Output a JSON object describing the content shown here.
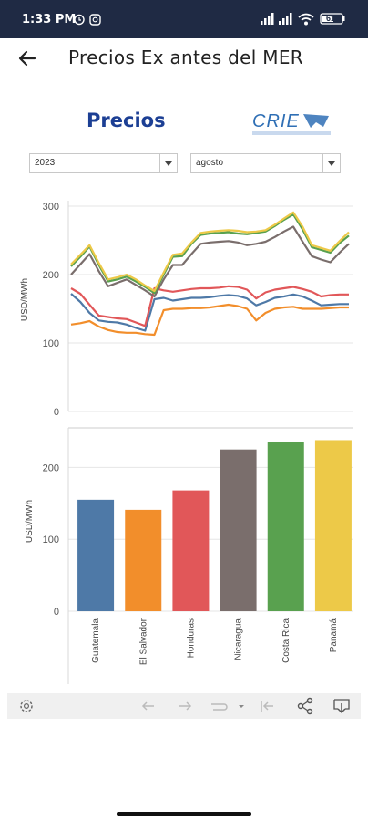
{
  "status_bar": {
    "time": "1:33 PM",
    "battery": "61"
  },
  "app_bar": {
    "title": "Precios Ex antes del MER",
    "back_icon": "arrow-left-icon"
  },
  "section": {
    "title": "Precios",
    "logo_text": "CRIE"
  },
  "filters": {
    "year": "2023",
    "month": "agosto"
  },
  "colors": {
    "Guatemala": "#4e79a7",
    "El Salvador": "#f28e2b",
    "Honduras": "#e15759",
    "Nicaragua": "#7a6e6c",
    "Costa Rica": "#59a14f",
    "Panamá": "#edc948"
  },
  "chart_data": [
    {
      "type": "line",
      "ylabel": "USD/MWh",
      "ylim": [
        0,
        300
      ],
      "yticks": [
        "0",
        "100",
        "200",
        "300"
      ],
      "x": [
        1,
        2,
        3,
        4,
        5,
        6,
        7,
        8,
        9,
        10,
        11,
        12,
        13,
        14,
        15,
        16,
        17,
        18,
        19,
        20,
        21,
        22,
        23,
        24,
        25,
        26,
        27,
        28,
        29,
        30,
        31
      ],
      "series": [
        {
          "name": "Guatemala",
          "values": [
            172,
            160,
            144,
            133,
            131,
            130,
            127,
            122,
            118,
            164,
            166,
            162,
            164,
            166,
            166,
            167,
            169,
            170,
            169,
            165,
            155,
            160,
            166,
            168,
            171,
            168,
            162,
            155,
            156,
            157,
            157
          ]
        },
        {
          "name": "El Salvador",
          "values": [
            127,
            129,
            132,
            124,
            119,
            116,
            115,
            115,
            113,
            112,
            148,
            150,
            150,
            151,
            151,
            152,
            154,
            156,
            154,
            150,
            133,
            144,
            150,
            152,
            153,
            150,
            150,
            150,
            151,
            152,
            152
          ]
        },
        {
          "name": "Honduras",
          "values": [
            180,
            172,
            156,
            140,
            138,
            136,
            135,
            130,
            125,
            180,
            177,
            175,
            177,
            179,
            180,
            180,
            181,
            183,
            182,
            178,
            165,
            174,
            178,
            180,
            182,
            179,
            175,
            168,
            170,
            171,
            171
          ]
        },
        {
          "name": "Nicaragua",
          "values": [
            200,
            215,
            230,
            205,
            183,
            188,
            193,
            185,
            177,
            168,
            193,
            214,
            214,
            230,
            245,
            247,
            248,
            249,
            247,
            243,
            245,
            248,
            255,
            263,
            270,
            248,
            227,
            222,
            218,
            232,
            245
          ]
        },
        {
          "name": "Costa Rica",
          "values": [
            212,
            226,
            241,
            214,
            190,
            193,
            197,
            190,
            182,
            173,
            200,
            226,
            227,
            245,
            258,
            260,
            261,
            262,
            260,
            259,
            261,
            263,
            271,
            280,
            288,
            266,
            240,
            236,
            232,
            246,
            257
          ]
        },
        {
          "name": "Panamá",
          "values": [
            215,
            229,
            243,
            217,
            193,
            196,
            200,
            193,
            184,
            176,
            203,
            229,
            231,
            247,
            261,
            263,
            264,
            265,
            264,
            262,
            263,
            265,
            273,
            282,
            291,
            270,
            243,
            239,
            235,
            249,
            262
          ]
        }
      ]
    },
    {
      "type": "bar",
      "ylabel": "USD/MWh",
      "ylim": [
        0,
        250
      ],
      "yticks": [
        "0",
        "100",
        "200"
      ],
      "categories": [
        "Guatemala",
        "El Salvador",
        "Honduras",
        "Nicaragua",
        "Costa Rica",
        "Panamá"
      ],
      "values": [
        155,
        141,
        168,
        225,
        236,
        238
      ]
    }
  ]
}
